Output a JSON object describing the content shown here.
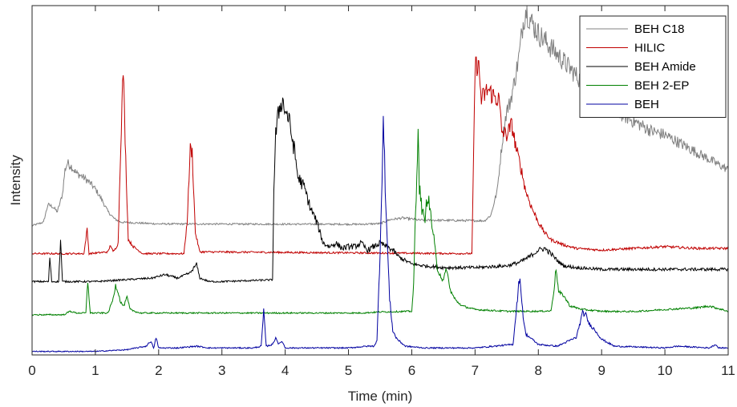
{
  "chart_data": {
    "type": "line",
    "title": "",
    "xlabel": "Time (min)",
    "ylabel": "Intensity",
    "xlim": [
      0,
      11
    ],
    "ylim": [
      0,
      100
    ],
    "x_ticks": [
      0,
      1,
      2,
      3,
      4,
      5,
      6,
      7,
      8,
      9,
      10,
      11
    ],
    "y_ticks_shown": false,
    "grid": false,
    "legend_position": "top-right",
    "series": [
      {
        "name": "BEH C18",
        "color": "#808080",
        "baseline": 37.5,
        "noise": 0.25,
        "points": [
          [
            0,
            37
          ],
          [
            0.18,
            38
          ],
          [
            0.25,
            43
          ],
          [
            0.32,
            42.5
          ],
          [
            0.4,
            41
          ],
          [
            0.48,
            46
          ],
          [
            0.52,
            53
          ],
          [
            0.56,
            55
          ],
          [
            0.62,
            54
          ],
          [
            0.7,
            52
          ],
          [
            0.8,
            51
          ],
          [
            0.9,
            49.5
          ],
          [
            1.0,
            47.5
          ],
          [
            1.1,
            44.5
          ],
          [
            1.2,
            41
          ],
          [
            1.3,
            39
          ],
          [
            1.4,
            38
          ],
          [
            2.0,
            37.5
          ],
          [
            5.2,
            37.4
          ],
          [
            5.5,
            37.6
          ],
          [
            5.65,
            38.7
          ],
          [
            5.85,
            39.2
          ],
          [
            6.05,
            38.8
          ],
          [
            6.1,
            38.6
          ],
          [
            7.15,
            38.4
          ],
          [
            7.25,
            40
          ],
          [
            7.35,
            47
          ],
          [
            7.4,
            56
          ],
          [
            7.45,
            64
          ],
          [
            7.5,
            70
          ],
          [
            7.55,
            72
          ],
          [
            7.62,
            78
          ],
          [
            7.7,
            86
          ],
          [
            7.75,
            94
          ],
          [
            7.8,
            99
          ],
          [
            7.9,
            95
          ],
          [
            8.0,
            92
          ],
          [
            8.2,
            88
          ],
          [
            8.4,
            84
          ],
          [
            8.6,
            80
          ],
          [
            8.8,
            76
          ],
          [
            9.0,
            73
          ],
          [
            9.2,
            70
          ],
          [
            9.5,
            67
          ],
          [
            9.8,
            64
          ],
          [
            10.0,
            63
          ],
          [
            10.3,
            60
          ],
          [
            10.6,
            57
          ],
          [
            10.8,
            55
          ],
          [
            11.0,
            53
          ]
        ]
      },
      {
        "name": "HILIC",
        "color": "#c00000",
        "baseline": 29,
        "noise": 0.25,
        "points": [
          [
            0,
            29
          ],
          [
            0.82,
            29
          ],
          [
            0.87,
            36
          ],
          [
            0.9,
            29
          ],
          [
            1.2,
            29.5
          ],
          [
            1.24,
            31.5
          ],
          [
            1.28,
            29.5
          ],
          [
            1.32,
            30.5
          ],
          [
            1.36,
            32
          ],
          [
            1.4,
            60
          ],
          [
            1.44,
            82
          ],
          [
            1.48,
            56
          ],
          [
            1.52,
            33
          ],
          [
            1.6,
            31
          ],
          [
            1.75,
            29
          ],
          [
            2.4,
            29
          ],
          [
            2.45,
            38
          ],
          [
            2.5,
            59
          ],
          [
            2.53,
            58
          ],
          [
            2.58,
            35
          ],
          [
            2.65,
            29.5
          ],
          [
            6.95,
            29
          ],
          [
            6.97,
            49
          ],
          [
            7.0,
            82
          ],
          [
            7.05,
            84
          ],
          [
            7.1,
            73
          ],
          [
            7.2,
            76
          ],
          [
            7.3,
            74
          ],
          [
            7.38,
            73
          ],
          [
            7.42,
            64
          ],
          [
            7.5,
            63
          ],
          [
            7.58,
            66
          ],
          [
            7.65,
            59
          ],
          [
            7.72,
            54
          ],
          [
            7.8,
            47
          ],
          [
            7.9,
            42
          ],
          [
            8.0,
            38
          ],
          [
            8.1,
            35
          ],
          [
            8.2,
            33
          ],
          [
            8.4,
            31.5
          ],
          [
            8.6,
            30.5
          ],
          [
            9.0,
            30
          ],
          [
            9.5,
            30.5
          ],
          [
            10.0,
            31
          ],
          [
            10.5,
            30.5
          ],
          [
            11,
            30.5
          ]
        ]
      },
      {
        "name": "BEH Amide",
        "color": "#000000",
        "baseline": 21.5,
        "noise": 0.25,
        "points": [
          [
            0,
            21
          ],
          [
            0.26,
            21
          ],
          [
            0.28,
            28
          ],
          [
            0.31,
            21
          ],
          [
            0.42,
            21
          ],
          [
            0.45,
            33
          ],
          [
            0.48,
            21
          ],
          [
            1.0,
            21
          ],
          [
            1.9,
            22
          ],
          [
            2.1,
            23
          ],
          [
            2.3,
            22
          ],
          [
            2.5,
            23.5
          ],
          [
            2.6,
            26
          ],
          [
            2.65,
            22
          ],
          [
            2.8,
            21
          ],
          [
            3.0,
            21
          ],
          [
            3.8,
            21.5
          ],
          [
            3.82,
            47
          ],
          [
            3.85,
            63
          ],
          [
            3.9,
            70
          ],
          [
            3.95,
            73
          ],
          [
            4.0,
            70
          ],
          [
            4.05,
            68
          ],
          [
            4.1,
            63
          ],
          [
            4.15,
            58
          ],
          [
            4.2,
            51
          ],
          [
            4.3,
            48
          ],
          [
            4.4,
            42
          ],
          [
            4.5,
            38
          ],
          [
            4.6,
            32
          ],
          [
            4.7,
            31
          ],
          [
            4.8,
            32
          ],
          [
            4.9,
            30.5
          ],
          [
            5.0,
            31
          ],
          [
            5.1,
            31
          ],
          [
            5.2,
            32
          ],
          [
            5.3,
            30
          ],
          [
            5.4,
            31
          ],
          [
            5.5,
            32
          ],
          [
            5.6,
            31
          ],
          [
            5.7,
            30
          ],
          [
            5.8,
            28
          ],
          [
            5.9,
            27
          ],
          [
            6.0,
            26
          ],
          [
            6.2,
            25.5
          ],
          [
            6.5,
            25
          ],
          [
            7.0,
            25
          ],
          [
            7.5,
            25.5
          ],
          [
            7.7,
            26.5
          ],
          [
            7.85,
            28
          ],
          [
            8.0,
            30
          ],
          [
            8.1,
            30.5
          ],
          [
            8.2,
            29
          ],
          [
            8.3,
            27
          ],
          [
            8.4,
            25.5
          ],
          [
            8.6,
            25
          ],
          [
            9.0,
            24.5
          ],
          [
            10.0,
            24.5
          ],
          [
            11,
            24.5
          ]
        ]
      },
      {
        "name": "BEH 2-EP",
        "color": "#008000",
        "baseline": 12,
        "noise": 0.2,
        "points": [
          [
            0,
            11.5
          ],
          [
            0.5,
            11.5
          ],
          [
            0.6,
            12.5
          ],
          [
            0.7,
            12
          ],
          [
            0.85,
            12
          ],
          [
            0.88,
            21
          ],
          [
            0.92,
            12
          ],
          [
            1.2,
            12
          ],
          [
            1.28,
            16
          ],
          [
            1.32,
            20
          ],
          [
            1.36,
            18
          ],
          [
            1.4,
            15
          ],
          [
            1.45,
            14
          ],
          [
            1.5,
            16.5
          ],
          [
            1.55,
            13
          ],
          [
            1.7,
            12
          ],
          [
            5.2,
            12
          ],
          [
            5.5,
            12.3
          ],
          [
            6.0,
            12.5
          ],
          [
            6.03,
            20
          ],
          [
            6.05,
            35
          ],
          [
            6.08,
            50
          ],
          [
            6.1,
            68
          ],
          [
            6.12,
            48
          ],
          [
            6.16,
            42
          ],
          [
            6.2,
            38
          ],
          [
            6.25,
            46
          ],
          [
            6.3,
            40
          ],
          [
            6.35,
            33
          ],
          [
            6.4,
            25
          ],
          [
            6.5,
            21
          ],
          [
            6.55,
            25
          ],
          [
            6.6,
            19
          ],
          [
            6.65,
            17
          ],
          [
            6.7,
            15.5
          ],
          [
            6.8,
            14
          ],
          [
            7.0,
            13
          ],
          [
            7.5,
            12.5
          ],
          [
            8.0,
            12.5
          ],
          [
            8.2,
            12.6
          ],
          [
            8.25,
            19
          ],
          [
            8.28,
            25
          ],
          [
            8.32,
            18
          ],
          [
            8.4,
            17
          ],
          [
            8.5,
            14
          ],
          [
            8.7,
            13
          ],
          [
            9.0,
            12.5
          ],
          [
            9.5,
            12.4
          ],
          [
            10.0,
            13
          ],
          [
            10.5,
            13.5
          ],
          [
            10.7,
            14
          ],
          [
            10.9,
            13
          ],
          [
            11,
            12.5
          ]
        ]
      },
      {
        "name": "BEH",
        "color": "#0000a0",
        "baseline": 1.5,
        "noise": 0.15,
        "points": [
          [
            0,
            1
          ],
          [
            1.0,
            1
          ],
          [
            1.5,
            1.5
          ],
          [
            1.8,
            2.5
          ],
          [
            1.88,
            4
          ],
          [
            1.92,
            1.8
          ],
          [
            1.96,
            5
          ],
          [
            2.0,
            2
          ],
          [
            2.3,
            2
          ],
          [
            2.6,
            2.5
          ],
          [
            2.8,
            2
          ],
          [
            3.5,
            2
          ],
          [
            3.62,
            2.5
          ],
          [
            3.66,
            12.5
          ],
          [
            3.7,
            2.5
          ],
          [
            3.8,
            3
          ],
          [
            3.85,
            5
          ],
          [
            3.9,
            3
          ],
          [
            3.95,
            4
          ],
          [
            4.0,
            2
          ],
          [
            4.5,
            2
          ],
          [
            5.0,
            2
          ],
          [
            5.3,
            2.5
          ],
          [
            5.4,
            2.5
          ],
          [
            5.45,
            4
          ],
          [
            5.5,
            30
          ],
          [
            5.55,
            67
          ],
          [
            5.6,
            38
          ],
          [
            5.65,
            16
          ],
          [
            5.7,
            7
          ],
          [
            5.75,
            5
          ],
          [
            5.8,
            4
          ],
          [
            5.9,
            2.5
          ],
          [
            6.2,
            2
          ],
          [
            7.0,
            2
          ],
          [
            7.6,
            3
          ],
          [
            7.7,
            22
          ],
          [
            7.73,
            18
          ],
          [
            7.76,
            11
          ],
          [
            7.8,
            6
          ],
          [
            8.0,
            3
          ],
          [
            8.3,
            2.5
          ],
          [
            8.6,
            5
          ],
          [
            8.7,
            12
          ],
          [
            8.75,
            11.5
          ],
          [
            8.8,
            9
          ],
          [
            8.9,
            7
          ],
          [
            9.0,
            4.5
          ],
          [
            9.2,
            2.5
          ],
          [
            10.0,
            2
          ],
          [
            10.2,
            2.5
          ],
          [
            10.7,
            2
          ],
          [
            10.8,
            3
          ],
          [
            10.85,
            2
          ],
          [
            11,
            2
          ]
        ]
      }
    ]
  }
}
